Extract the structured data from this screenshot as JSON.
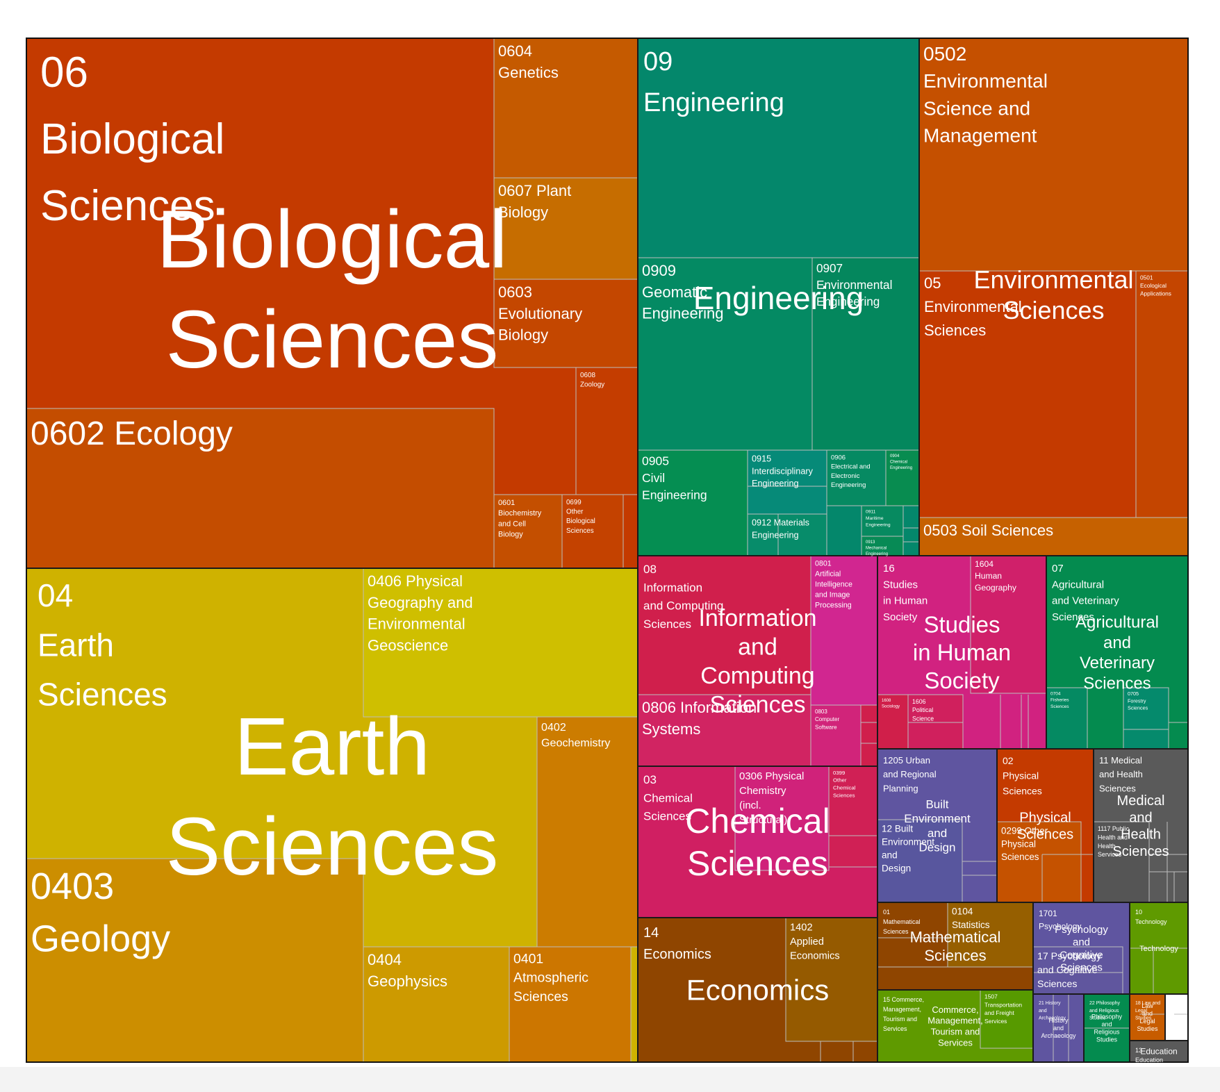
{
  "chart_data": {
    "type": "treemap",
    "group_color_legend": {
      "06": "#c43a00",
      "09": "#04876b",
      "05": "#c43a00",
      "04": "#cfb200",
      "08": "#d01f4c",
      "16": "#d12280",
      "07": "#048b4f",
      "03": "#d01f62",
      "12": "#5f55a0",
      "02": "#c43a00",
      "11": "#5a5a5a",
      "14": "#8f4500",
      "01": "#8f4500",
      "15": "#5f9a00",
      "10": "#5f9a00",
      "17": "#5f55a0",
      "21": "#5f55a0",
      "22": "#048b4f",
      "18": "#c75c00",
      "13": "#5a5a5a"
    },
    "groups": [
      {
        "code": "06",
        "label": "06\nBiological\nSciences",
        "name": "Biological Sciences",
        "center_label": "Biological\nSciences",
        "color": "#c43a00",
        "children": [
          {
            "label": "0602 Ecology",
            "color": "#c44d00"
          },
          {
            "label": "0604\nGenetics",
            "color": "#c55a00"
          },
          {
            "label": "0607 Plant\nBiology",
            "color": "#c66d00"
          },
          {
            "label": "0603\nEvolutionary\nBiology",
            "color": "#c44700"
          },
          {
            "label": "0608\nZoology",
            "color": "#c43d00"
          },
          {
            "label": "0601\nBiochemistry\nand Cell\nBiology",
            "color": "#c44f00"
          },
          {
            "label": "0699\nOther\nBiological\nSciences",
            "color": "#c44200"
          }
        ]
      },
      {
        "code": "09",
        "label": "09\nEngineering",
        "name": "Engineering",
        "center_label": "Engineering",
        "color": "#04876b",
        "children": [
          {
            "label": "0909\nGeomatic\nEngineering",
            "color": "#048a63"
          },
          {
            "label": "0907\nEnvironmental\nEngineering",
            "color": "#04875d"
          },
          {
            "label": "0905\nCivil\nEngineering",
            "color": "#058e52"
          },
          {
            "label": "0915\nInterdisciplinary\nEngineering",
            "color": "#068a78"
          },
          {
            "label": "0906\nElectrical and\nElectronic\nEngineering",
            "color": "#068a62"
          },
          {
            "label": "0904\nChemical\nEngineering",
            "color": "#088c50"
          },
          {
            "label": "0912 Materials\nEngineering",
            "color": "#078c6a"
          },
          {
            "label": "0911\nMaritime\nEngineering",
            "color": "#078a60"
          },
          {
            "label": "0913\nMechanical\nEngineering",
            "color": "#078a55"
          }
        ]
      },
      {
        "code": "05",
        "label": "05\nEnvironmental\nSciences",
        "name": "Environmental Sciences",
        "center_label": "Environmental\nSciences",
        "color": "#c43a00",
        "children": [
          {
            "label": "0502\nEnvironmental\nScience and\nManagement",
            "color": "#c55000"
          },
          {
            "label": "0503 Soil Sciences",
            "color": "#c66100"
          },
          {
            "label": "0501\nEcological\nApplications",
            "color": "#c44500"
          }
        ]
      },
      {
        "code": "04",
        "label": "04\nEarth\nSciences",
        "name": "Earth Sciences",
        "center_label": "Earth\nSciences",
        "color": "#cfb200",
        "children": [
          {
            "label": "0406 Physical\nGeography and\nEnvironmental\nGeoscience",
            "color": "#cfbf00"
          },
          {
            "label": "0403\nGeology",
            "color": "#cc8e00"
          },
          {
            "label": "0402\nGeochemistry",
            "color": "#cc7c00"
          },
          {
            "label": "0404\nGeophysics",
            "color": "#cd9a00"
          },
          {
            "label": "0401\nAtmospheric\nSciences",
            "color": "#cc7600"
          }
        ]
      },
      {
        "code": "08",
        "label": "08\nInformation\nand Computing\nSciences",
        "name": "Information and Computing Sciences",
        "center_label": "Information\nand\nComputing\nSciences",
        "color": "#d01f4c",
        "children": [
          {
            "label": "0801\nArtificial\nIntelligence\nand Image\nProcessing",
            "color": "#d12690"
          },
          {
            "label": "0806 Information\nSystems",
            "color": "#d12462"
          },
          {
            "label": "0803\nComputer\nSoftware",
            "color": "#d1247a"
          }
        ]
      },
      {
        "code": "16",
        "label": "16\nStudies\nin Human\nSociety",
        "name": "Studies in Human Society",
        "center_label": "Studies\nin Human\nSociety",
        "color": "#d12280",
        "children": [
          {
            "label": "1604\nHuman\nGeography",
            "color": "#d0206a"
          },
          {
            "label": "1608\nSociology",
            "color": "#d01f4a"
          },
          {
            "label": "1606\nPolitical\nScience",
            "color": "#d0205d"
          }
        ]
      },
      {
        "code": "07",
        "label": "07\nAgricultural\nand Veterinary\nSciences",
        "name": "Agricultural and Veterinary Sciences",
        "center_label": "Agricultural\nand\nVeterinary\nSciences",
        "color": "#048b4f",
        "children": [
          {
            "label": "0704\nFisheries\nSciences",
            "color": "#058a62"
          },
          {
            "label": "0705\nForestry\nSciences",
            "color": "#058a6c"
          }
        ]
      },
      {
        "code": "03",
        "label": "03\nChemical\nSciences",
        "name": "Chemical Sciences",
        "center_label": "Chemical\nSciences",
        "color": "#d01f62",
        "children": [
          {
            "label": "0306 Physical\nChemistry\n(incl.\nStructural)",
            "color": "#d0227a"
          },
          {
            "label": "0399\nOther\nChemical\nSciences",
            "color": "#d02055"
          }
        ]
      },
      {
        "code": "12",
        "label": "1205 Urban\nand Regional\nPlanning",
        "name": "Built Environment and Design",
        "center_label": "Built\nEnvironment\nand\nDesign",
        "color": "#5f55a0",
        "children": [
          {
            "label": "12 Built\nEnvironment\nand\nDesign",
            "color": "#58569e"
          }
        ]
      },
      {
        "code": "02",
        "label": "02\nPhysical\nSciences",
        "name": "Physical Sciences",
        "center_label": "Physical\nSciences",
        "color": "#c43a00",
        "children": [
          {
            "label": "0299 Other\nPhysical\nSciences",
            "color": "#c55200"
          }
        ]
      },
      {
        "code": "11",
        "label": "11 Medical\nand Health\nSciences",
        "name": "Medical and Health Sciences",
        "center_label": "Medical\nand\nHealth\nSciences",
        "color": "#5a5a5a",
        "children": [
          {
            "label": "1117 Public\nHealth and\nHealth\nServices",
            "color": "#555555"
          }
        ]
      },
      {
        "code": "14",
        "label": "14\nEconomics",
        "name": "Economics",
        "center_label": "Economics",
        "color": "#8f4500",
        "children": [
          {
            "label": "1402\nApplied\nEconomics",
            "color": "#955a00"
          }
        ]
      },
      {
        "code": "01",
        "label": "01\nMathematical\nSciences",
        "name": "Mathematical Sciences",
        "center_label": "Mathematical\nSciences",
        "color": "#8f4500",
        "children": [
          {
            "label": "0104\nStatistics",
            "color": "#965f00"
          }
        ]
      },
      {
        "code": "15",
        "label": "15 Commerce,\nManagement,\nTourism and\nServices",
        "name": "Commerce, Management, Tourism and Services",
        "center_label": "Commerce,\nManagement,\nTourism and\nServices",
        "color": "#5f9a00",
        "children": [
          {
            "label": "1507\nTransportation\nand Freight\nServices",
            "color": "#579a00"
          }
        ]
      },
      {
        "code": "17",
        "label": "1701\nPsychology",
        "name": "Psychology and Cognitive Sciences",
        "center_label": "Psychology\nand\nCognitive\nSciences",
        "color": "#5f55a0",
        "children": [
          {
            "label": "17 Psychology\nand Cognitive\nSciences",
            "color": "#60569e"
          }
        ]
      },
      {
        "code": "10",
        "label": "10\nTechnology",
        "name": "Technology",
        "center_label": "Technology",
        "color": "#5f9a00",
        "children": []
      },
      {
        "code": "21",
        "label": "21 History\nand\nArchaeology",
        "name": "History and Archaeology",
        "center_label": "History\nand\nArchaeology",
        "color": "#5f55a0",
        "children": []
      },
      {
        "code": "22",
        "label": "22 Philosophy\nand Religious\nStudies",
        "name": "Philosophy and Religious Studies",
        "center_label": "Philosophy\nand\nReligious\nStudies",
        "color": "#048b4f",
        "children": []
      },
      {
        "code": "18",
        "label": "18 Law and\nLegal\nStudies",
        "name": "Law and Legal Studies",
        "center_label": "Law\nand\nLegal\nStudies",
        "color": "#c75c00",
        "children": []
      },
      {
        "code": "13",
        "label": "13\nEducation",
        "name": "Education",
        "center_label": "Education",
        "color": "#5a5a5a",
        "children": []
      }
    ]
  }
}
